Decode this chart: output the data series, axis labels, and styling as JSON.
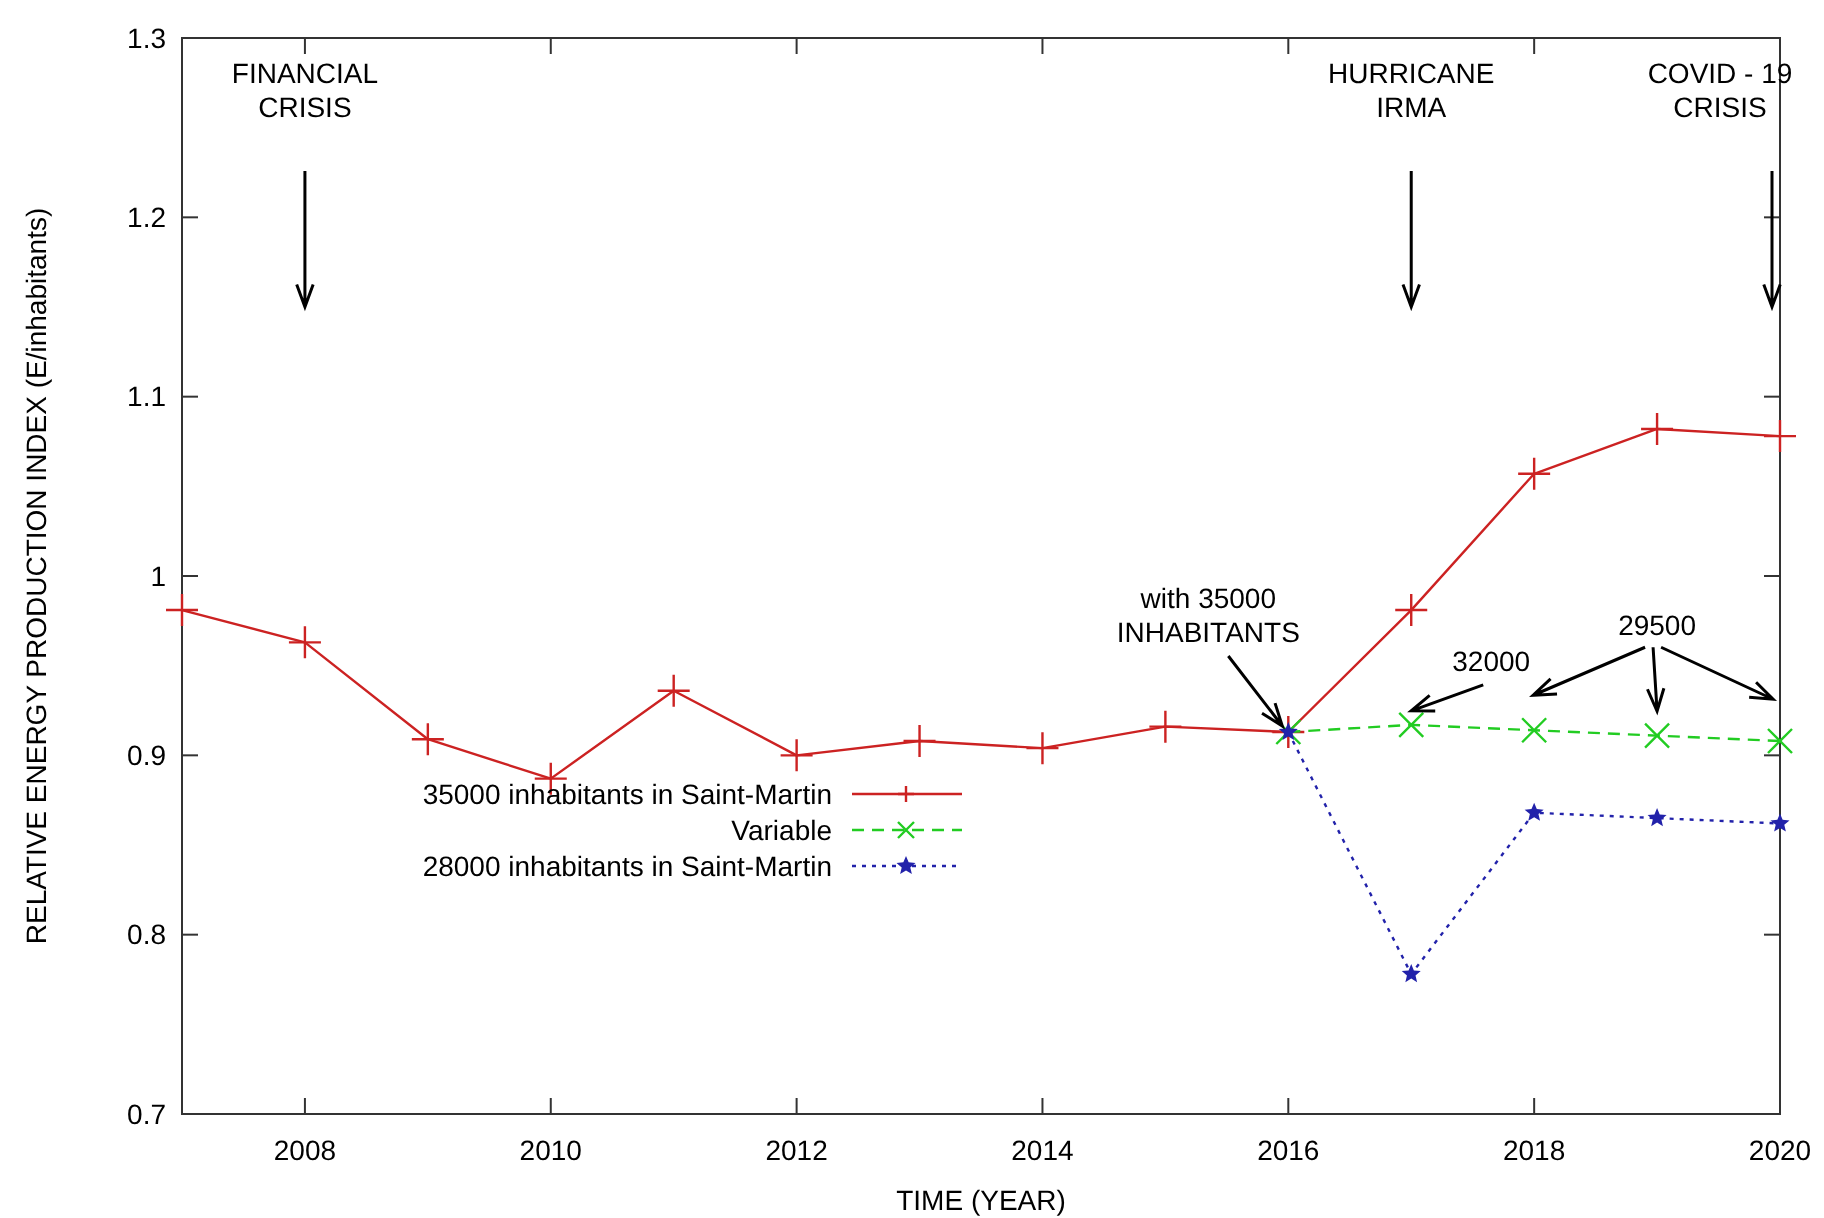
{
  "chart_data": {
    "type": "line",
    "xlabel": "TIME (YEAR)",
    "ylabel": "RELATIVE ENERGY PRODUCTION INDEX (E/inhabitants)",
    "xlim": [
      2007,
      2020
    ],
    "xticks": [
      2008,
      2010,
      2012,
      2014,
      2016,
      2018,
      2020
    ],
    "ylim": [
      0.7,
      1.3
    ],
    "yticks": [
      0.7,
      0.8,
      0.9,
      {
        "value": 1,
        "label": "1"
      },
      1.1,
      1.2,
      1.3
    ],
    "legend": "bottom left",
    "grid": false,
    "series": [
      {
        "name": "35000 inhabitants in Saint-Martin",
        "color": "#cc2222",
        "marker": "plus",
        "line_style": "solid",
        "x": [
          2007,
          2008,
          2009,
          2010,
          2011,
          2012,
          2013,
          2014,
          2015,
          2016,
          2017,
          2018,
          2019,
          2020
        ],
        "values": [
          0.981,
          0.963,
          0.909,
          0.887,
          0.936,
          0.9,
          0.908,
          0.904,
          0.916,
          0.913,
          0.981,
          1.057,
          1.082,
          1.078
        ]
      },
      {
        "name": "Variable",
        "color": "#22cc22",
        "marker": "cross",
        "line_style": "dashed",
        "x": [
          2016,
          2017,
          2018,
          2019,
          2020
        ],
        "values": [
          0.913,
          0.917,
          0.914,
          0.911,
          0.908
        ]
      },
      {
        "name": "28000 inhabitants in Saint-Martin",
        "color": "#2222aa",
        "marker": "star",
        "line_style": "dotted",
        "x": [
          2016,
          2017,
          2018,
          2019,
          2020
        ],
        "values": [
          0.913,
          0.778,
          0.868,
          0.865,
          0.862
        ]
      }
    ],
    "annotations": [
      "FINANCIAL\nCRISIS",
      "HURRICANE\nIRMA",
      "COVID - 19\nCRISIS",
      {
        "text": "with 35000\nINHABITANTS",
        "x": 2016,
        "y": 0.913
      },
      {
        "text": "32000",
        "x": 2017,
        "y": 0.917
      },
      "29500"
    ]
  }
}
